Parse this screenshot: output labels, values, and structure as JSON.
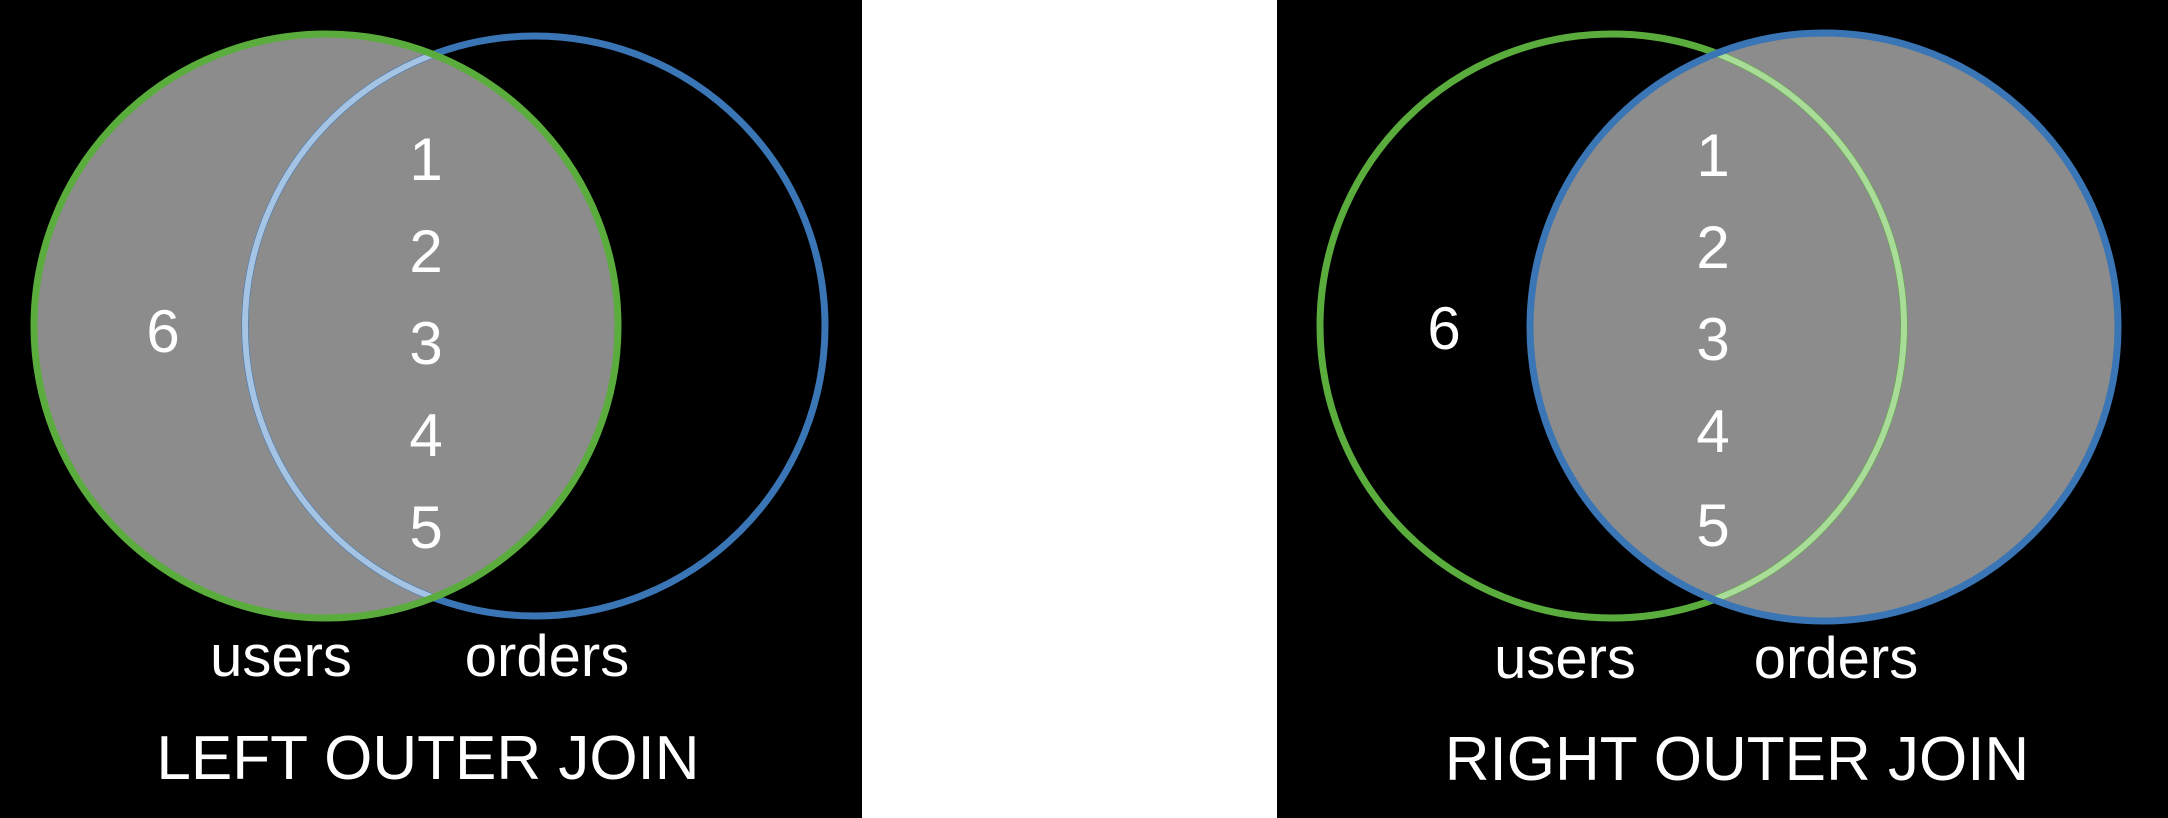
{
  "colors": {
    "background": "#000000",
    "fill": "#8c8c8c",
    "users_circle": "#5aad3c",
    "orders_circle": "#3a75b5",
    "users_circle_highlight": "#a9dc98",
    "orders_circle_highlight": "#a5c3e2",
    "text": "#ffffff"
  },
  "diagrams": [
    {
      "title": "LEFT OUTER JOIN",
      "highlighted_set": "users",
      "sets": {
        "left": "users",
        "right": "orders"
      },
      "left_only": [
        "6"
      ],
      "intersection": [
        "1",
        "2",
        "3",
        "4",
        "5"
      ]
    },
    {
      "title": "RIGHT OUTER JOIN",
      "highlighted_set": "orders",
      "sets": {
        "left": "users",
        "right": "orders"
      },
      "left_only": [
        "6"
      ],
      "intersection": [
        "1",
        "2",
        "3",
        "4",
        "5"
      ]
    }
  ]
}
